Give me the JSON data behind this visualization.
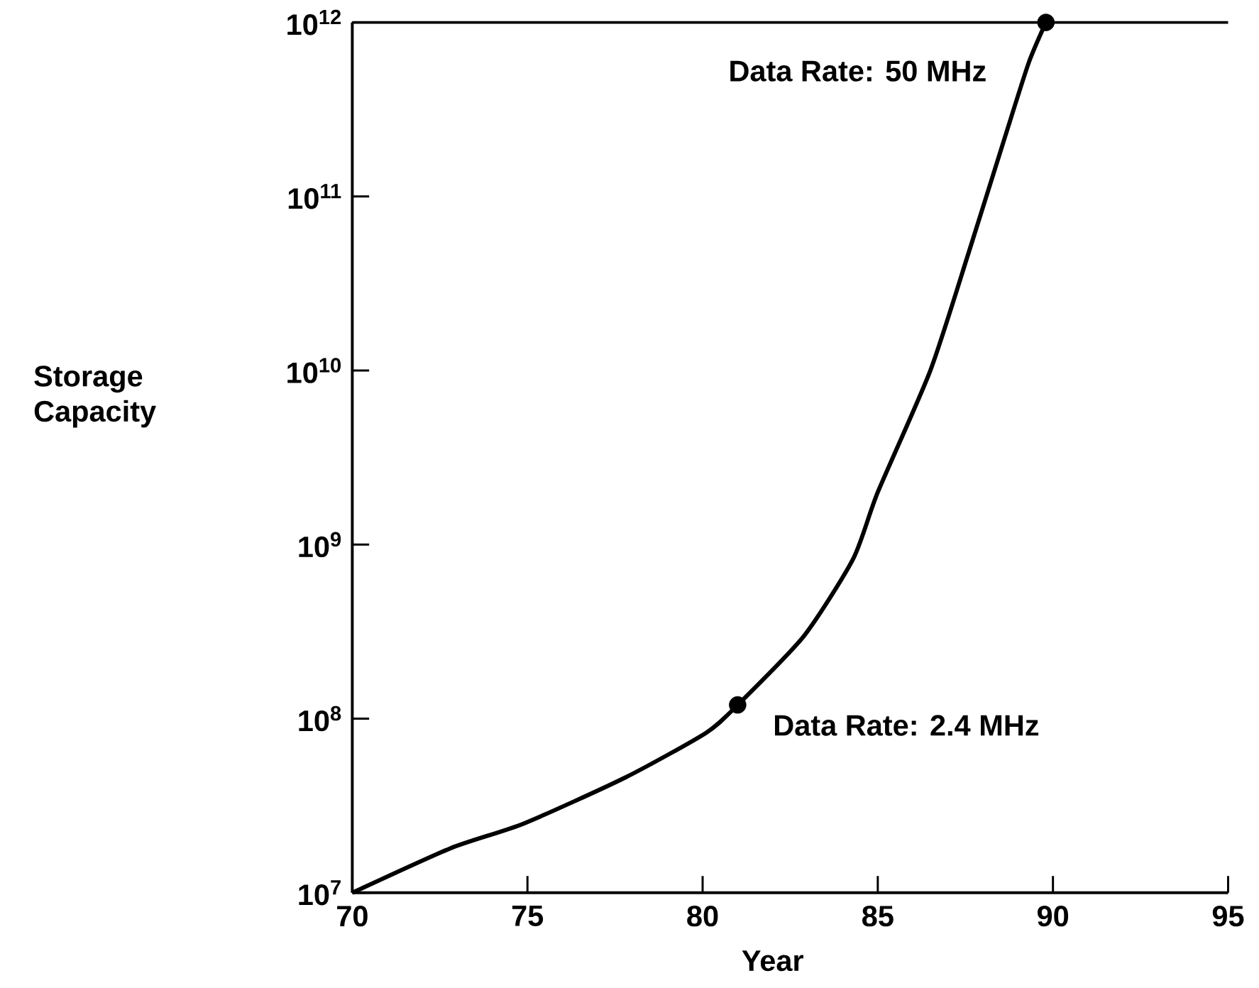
{
  "chart_data": {
    "type": "line",
    "xlabel": "Year",
    "ylabel": "Storage Capacity",
    "log": "y",
    "xlim": [
      70,
      95
    ],
    "xticks": [
      70,
      75,
      80,
      85,
      90,
      95
    ],
    "ylim": [
      10000000.0,
      1000000000000.0
    ],
    "yticks": [
      {
        "value": 10000000.0,
        "label": "10$^{7}$"
      },
      {
        "value": 100000000.0,
        "label": "10$^{8}$"
      },
      {
        "value": 1000000000.0,
        "label": "10$^{9}$"
      },
      {
        "value": 10000000000.0,
        "label": "10$^{10}$"
      },
      {
        "value": 100000000000.0,
        "label": "10$^{11}$"
      },
      {
        "value": 1000000000000.0,
        "label": "10$^{12}$"
      }
    ],
    "series": [
      {
        "color": "#000000",
        "marker": "none",
        "line_style": "solid",
        "x": [
          70,
          72.8,
          74.9,
          77.8,
          80.1,
          81,
          82.9,
          84.3,
          85,
          86.5,
          87.6,
          88.6,
          89.3,
          89.8
        ],
        "values": [
          10000000.0,
          18000000.0,
          25000000.0,
          46000000.0,
          83000000.0,
          120000000.0,
          300000000.0,
          830000000.0,
          2000000000.0,
          10000000000.0,
          48000000000.0,
          210000000000.0,
          580000000000.0,
          1000000000000.0
        ]
      },
      {
        "type": "scatter",
        "color": "#000000",
        "marker": "circle",
        "x": [
          81,
          89.8
        ],
        "values": [
          120000000.0,
          1000000000000.0
        ]
      }
    ],
    "annotations": [
      {
        "text": "Data Rate: 50 MHz",
        "x": 89.8,
        "y": 1000000000000.0
      },
      {
        "text": "Data Rate: 2.4 MHz",
        "x": 81,
        "y": 120000000.0
      }
    ]
  }
}
